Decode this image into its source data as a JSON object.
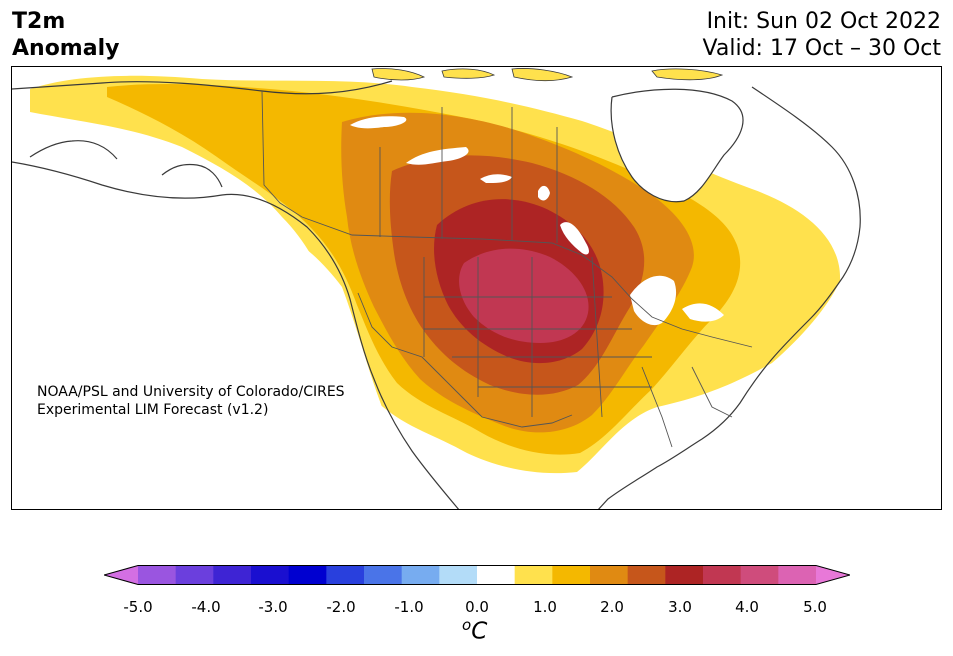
{
  "title": {
    "variable": "T2m",
    "subtitle": "Anomaly",
    "init": "Init: Sun 02 Oct 2022",
    "valid": "Valid: 17 Oct – 30 Oct"
  },
  "credit": {
    "line1": "NOAA/PSL and University of Colorado/CIRES",
    "line2": "Experimental LIM Forecast (v1.2)"
  },
  "colorbar": {
    "unit_prefix": "o",
    "unit": "C",
    "ticks": [
      "-5.0",
      "-4.0",
      "-3.0",
      "-2.0",
      "-1.0",
      "0.0",
      "1.0",
      "2.0",
      "3.0",
      "4.0",
      "5.0"
    ],
    "bins": [
      {
        "range": "< -5.0",
        "color": "#d36fe3"
      },
      {
        "range": "-5.0 to -4.5",
        "color": "#9a55e0"
      },
      {
        "range": "-4.5 to -4.0",
        "color": "#6b3fdd"
      },
      {
        "range": "-4.0 to -3.5",
        "color": "#3e24d4"
      },
      {
        "range": "-3.5 to -3.0",
        "color": "#1a0fd0"
      },
      {
        "range": "-3.0 to -2.5",
        "color": "#0000d0"
      },
      {
        "range": "-2.5 to -2.0",
        "color": "#2940dd"
      },
      {
        "range": "-2.0 to -1.5",
        "color": "#4a74e8"
      },
      {
        "range": "-1.5 to -1.0",
        "color": "#77acf0"
      },
      {
        "range": "-1.0 to -0.5",
        "color": "#b3dcf8"
      },
      {
        "range": "-0.5 to 0.5",
        "color": "#ffffff"
      },
      {
        "range": "0.5 to 1.0",
        "color": "#ffe14d"
      },
      {
        "range": "1.0 to 1.5",
        "color": "#f4b800"
      },
      {
        "range": "1.5 to 2.0",
        "color": "#e08a12"
      },
      {
        "range": "2.0 to 2.5",
        "color": "#c6561b"
      },
      {
        "range": "2.5 to 3.0",
        "color": "#ad2424"
      },
      {
        "range": "3.0 to 3.5",
        "color": "#c13752"
      },
      {
        "range": "3.5 to 4.0",
        "color": "#cf4c7c"
      },
      {
        "range": "4.0 to 4.5",
        "color": "#dc63b3"
      },
      {
        "range": "> 4.5",
        "color": "#e878d8"
      }
    ]
  }
}
